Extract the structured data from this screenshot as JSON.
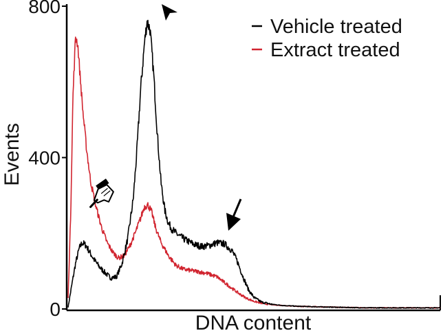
{
  "chart_data": {
    "type": "line",
    "title": "",
    "xlabel": "DNA content",
    "ylabel": "Events",
    "ylim": [
      0,
      800
    ],
    "yticks": [
      {
        "value": 0,
        "label": "0"
      },
      {
        "value": 400,
        "label": "400"
      },
      {
        "value": 800,
        "label": "800"
      }
    ],
    "x_ticks_shown": false,
    "xlim": [
      0,
      100
    ],
    "grid": false,
    "legend_position": "top-right",
    "series": [
      {
        "name": "Vehicle treated",
        "color": "#000000",
        "noise": 10,
        "x": [
          0,
          0.6,
          1.2,
          2,
          3,
          3.8,
          4.8,
          5.8,
          7,
          8.5,
          10,
          11.5,
          13,
          14.5,
          16,
          17.5,
          18.5,
          19.5,
          20.5,
          21.2,
          22,
          23,
          24,
          25,
          26,
          27,
          28,
          29,
          30,
          32,
          34,
          36,
          38,
          40,
          42,
          44,
          45.5,
          47,
          48.5,
          50,
          52,
          55,
          58,
          62,
          66,
          70,
          75,
          80,
          90,
          100
        ],
        "y": [
          5,
          40,
          75,
          120,
          160,
          175,
          168,
          150,
          130,
          110,
          95,
          82,
          85,
          120,
          185,
          290,
          420,
          580,
          700,
          760,
          740,
          620,
          460,
          330,
          260,
          225,
          210,
          200,
          192,
          180,
          170,
          165,
          168,
          175,
          172,
          155,
          125,
          85,
          50,
          30,
          18,
          12,
          9,
          7,
          6,
          5,
          4,
          3,
          3,
          3
        ]
      },
      {
        "name": "Extract treated",
        "color": "#d1242f",
        "noise": 8,
        "x": [
          0,
          0.7,
          1.3,
          2,
          2.6,
          3.2,
          4,
          5,
          6,
          7.5,
          9,
          10.5,
          12,
          13.5,
          15,
          16.5,
          18,
          19.5,
          20.5,
          21.5,
          22.5,
          23.5,
          25,
          27,
          29,
          31,
          34,
          37,
          40,
          42,
          44,
          46,
          48,
          50,
          52,
          55,
          58,
          62,
          66,
          70,
          75,
          80,
          90,
          100
        ],
        "y": [
          30,
          250,
          560,
          720,
          700,
          620,
          520,
          420,
          340,
          270,
          215,
          175,
          150,
          135,
          140,
          165,
          200,
          240,
          270,
          275,
          255,
          215,
          175,
          140,
          115,
          105,
          100,
          95,
          85,
          70,
          55,
          40,
          28,
          20,
          15,
          11,
          9,
          7,
          6,
          5,
          4,
          3,
          3,
          3
        ]
      }
    ],
    "annotations": [
      {
        "kind": "arrowhead",
        "name": "g1-peak-arrowhead"
      },
      {
        "kind": "arrow",
        "name": "g2m-arrow"
      },
      {
        "kind": "pointing-hand",
        "name": "sub-g1-pointer-icon"
      }
    ]
  }
}
